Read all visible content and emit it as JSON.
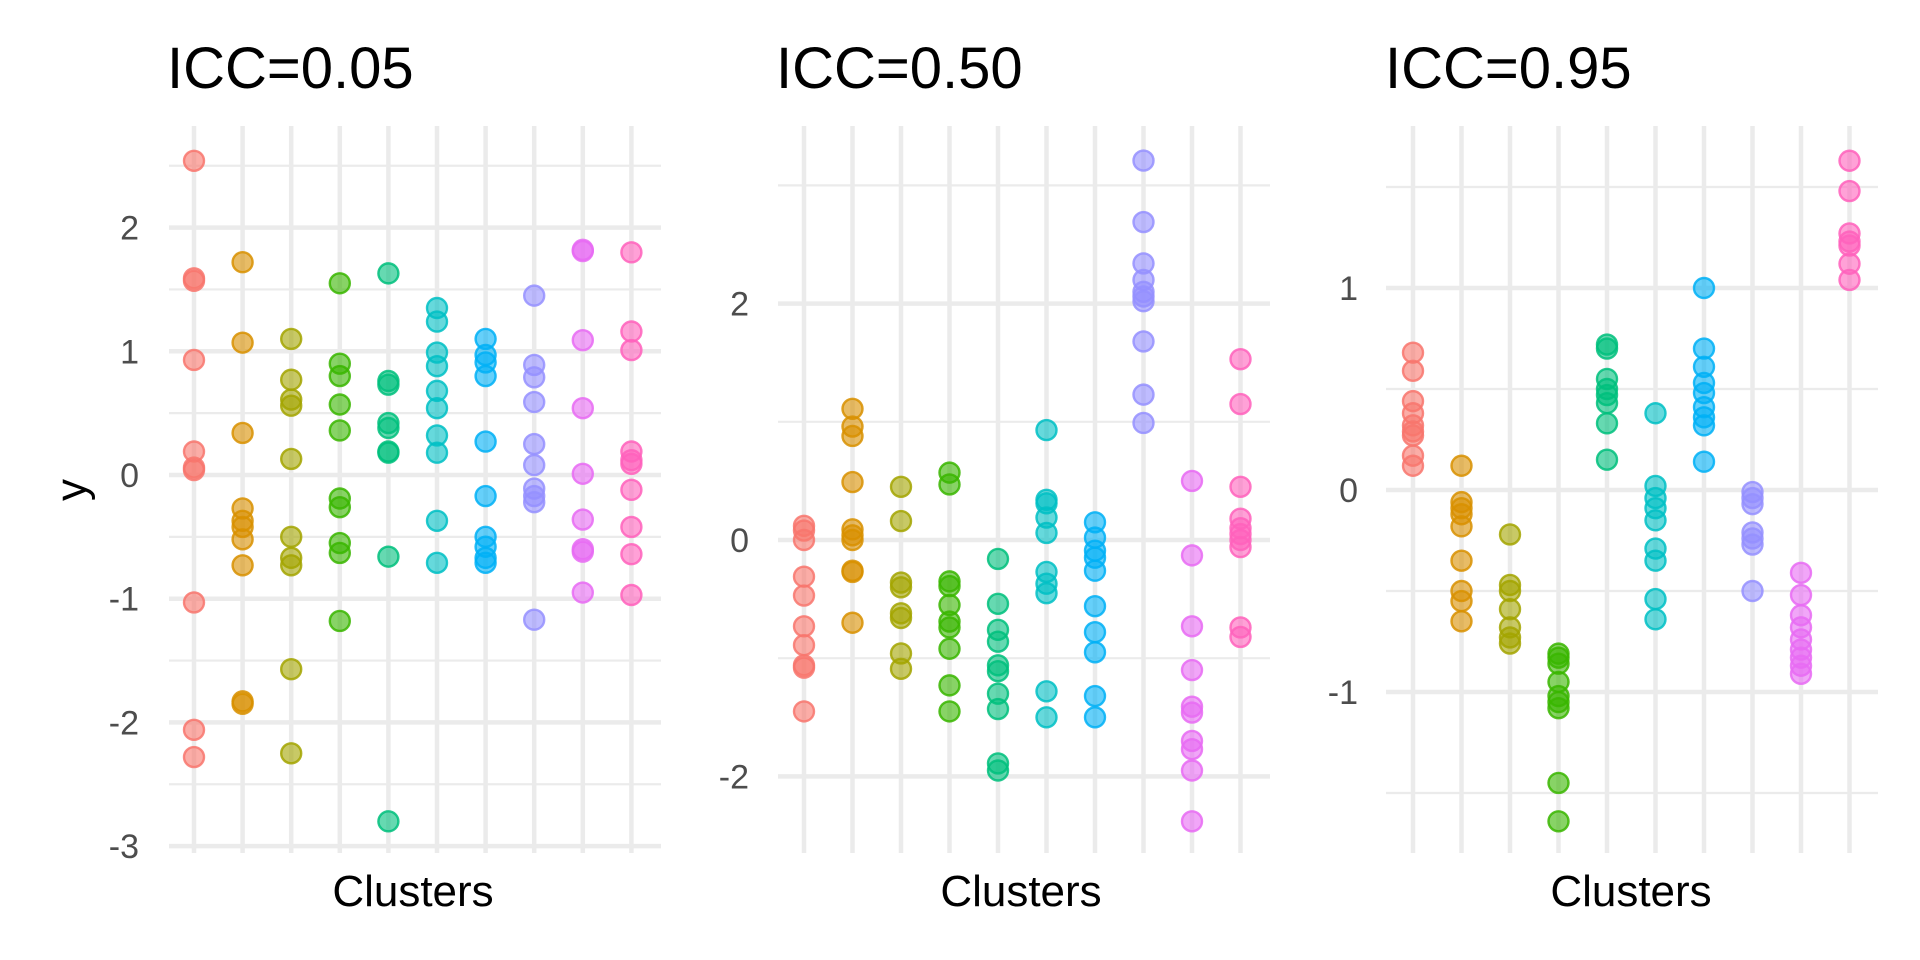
{
  "chart_data": [
    {
      "type": "scatter",
      "title": "ICC=0.05",
      "xlabel": "Clusters",
      "ylabel": "y",
      "ylim": [
        -3.05,
        2.6
      ],
      "yticks": [
        -3,
        -2,
        -1,
        0,
        1,
        2
      ],
      "ytick_labels": [
        "-3",
        "-2",
        "-1",
        "0",
        "1",
        "2"
      ],
      "grid": true,
      "legend": "none",
      "clusters": [
        [
          2.54,
          1.59,
          1.57,
          0.93,
          0.19,
          0.06,
          0.04,
          -1.03,
          -2.06,
          -2.28
        ],
        [
          1.72,
          1.07,
          0.34,
          -0.27,
          -0.37,
          -0.42,
          -0.52,
          -0.73,
          -1.83,
          -1.85
        ],
        [
          1.1,
          0.77,
          0.61,
          0.56,
          0.13,
          -0.5,
          -0.67,
          -0.73,
          -1.57,
          -2.25
        ],
        [
          1.55,
          0.9,
          0.8,
          0.57,
          0.36,
          -0.19,
          -0.26,
          -0.55,
          -0.63,
          -1.18
        ],
        [
          1.63,
          0.76,
          0.73,
          0.42,
          0.38,
          0.19,
          0.18,
          -0.66,
          -2.8
        ],
        [
          1.35,
          1.24,
          0.99,
          0.88,
          0.68,
          0.54,
          0.32,
          0.18,
          -0.37,
          -0.71
        ],
        [
          1.1,
          0.97,
          0.91,
          0.8,
          0.27,
          -0.17,
          -0.5,
          -0.58,
          -0.67,
          -0.71
        ],
        [
          1.45,
          0.89,
          0.79,
          0.59,
          0.25,
          0.08,
          -0.11,
          -0.17,
          -0.22,
          -1.17
        ],
        [
          1.82,
          1.81,
          1.09,
          0.54,
          0.01,
          -0.36,
          -0.6,
          -0.62,
          -0.95
        ],
        [
          1.8,
          1.16,
          1.01,
          0.19,
          0.12,
          0.09,
          -0.12,
          -0.42,
          -0.64,
          -0.97
        ]
      ]
    },
    {
      "type": "scatter",
      "title": "ICC=0.50",
      "xlabel": "Clusters",
      "ylabel": "",
      "ylim": [
        -2.6,
        3.3
      ],
      "yticks": [
        -2,
        0,
        2
      ],
      "ytick_labels": [
        "-2",
        "0",
        "2"
      ],
      "grid": true,
      "legend": "none",
      "clusters": [
        [
          0.12,
          0.08,
          0.0,
          -0.31,
          -0.47,
          -0.73,
          -0.89,
          -1.06,
          -1.08,
          -1.45
        ],
        [
          1.11,
          0.96,
          0.88,
          0.49,
          0.09,
          0.04,
          0.0,
          -0.26,
          -0.27,
          -0.7
        ],
        [
          0.45,
          0.16,
          -0.36,
          -0.4,
          -0.62,
          -0.66,
          -0.96,
          -1.09
        ],
        [
          0.57,
          0.47,
          -0.35,
          -0.39,
          -0.55,
          -0.69,
          -0.74,
          -0.92,
          -1.23,
          -1.45
        ],
        [
          -0.16,
          -0.54,
          -0.76,
          -0.86,
          -1.06,
          -1.11,
          -1.3,
          -1.43,
          -1.89,
          -1.95
        ],
        [
          0.93,
          0.34,
          0.31,
          0.19,
          0.06,
          -0.27,
          -0.37,
          -0.45,
          -1.28,
          -1.5
        ],
        [
          0.15,
          0.02,
          -0.09,
          -0.15,
          -0.26,
          -0.56,
          -0.78,
          -0.95,
          -1.32,
          -1.5
        ],
        [
          3.21,
          2.69,
          2.34,
          2.2,
          2.1,
          2.06,
          2.02,
          1.68,
          1.23,
          0.99
        ],
        [
          0.5,
          -0.13,
          -0.73,
          -1.1,
          -1.41,
          -1.46,
          -1.7,
          -1.77,
          -1.95,
          -2.38
        ],
        [
          1.53,
          1.15,
          0.45,
          0.18,
          0.1,
          0.05,
          0.0,
          -0.06,
          -0.74,
          -0.82
        ]
      ]
    },
    {
      "type": "scatter",
      "title": "ICC=0.95",
      "xlabel": "Clusters",
      "ylabel": "",
      "ylim": [
        -1.75,
        1.7
      ],
      "yticks": [
        -1,
        0,
        1
      ],
      "ytick_labels": [
        "-1",
        "0",
        "1"
      ],
      "grid": true,
      "legend": "none",
      "clusters": [
        [
          0.68,
          0.59,
          0.44,
          0.38,
          0.32,
          0.29,
          0.27,
          0.17,
          0.12
        ],
        [
          0.12,
          -0.06,
          -0.09,
          -0.12,
          -0.18,
          -0.35,
          -0.5,
          -0.55,
          -0.65
        ],
        [
          -0.22,
          -0.47,
          -0.5,
          -0.59,
          -0.68,
          -0.73,
          -0.76
        ],
        [
          -0.81,
          -0.83,
          -0.86,
          -0.95,
          -1.02,
          -1.05,
          -1.08,
          -1.45,
          -1.64
        ],
        [
          0.72,
          0.7,
          0.55,
          0.5,
          0.47,
          0.43,
          0.33,
          0.15
        ],
        [
          0.38,
          0.02,
          -0.04,
          -0.09,
          -0.15,
          -0.29,
          -0.35,
          -0.54,
          -0.64
        ],
        [
          1.0,
          0.7,
          0.61,
          0.53,
          0.48,
          0.41,
          0.36,
          0.32,
          0.14
        ],
        [
          -0.01,
          -0.04,
          -0.07,
          -0.21,
          -0.24,
          -0.27,
          -0.5
        ],
        [
          -0.41,
          -0.52,
          -0.62,
          -0.68,
          -0.74,
          -0.79,
          -0.83,
          -0.87,
          -0.91
        ],
        [
          1.63,
          1.48,
          1.27,
          1.23,
          1.21,
          1.12,
          1.04
        ]
      ]
    }
  ],
  "cluster_colors": [
    "#F8766D",
    "#D89000",
    "#A3A500",
    "#39B600",
    "#00BF7D",
    "#00BFC4",
    "#00B0F6",
    "#9590FF",
    "#E76BF3",
    "#FF62BC"
  ]
}
